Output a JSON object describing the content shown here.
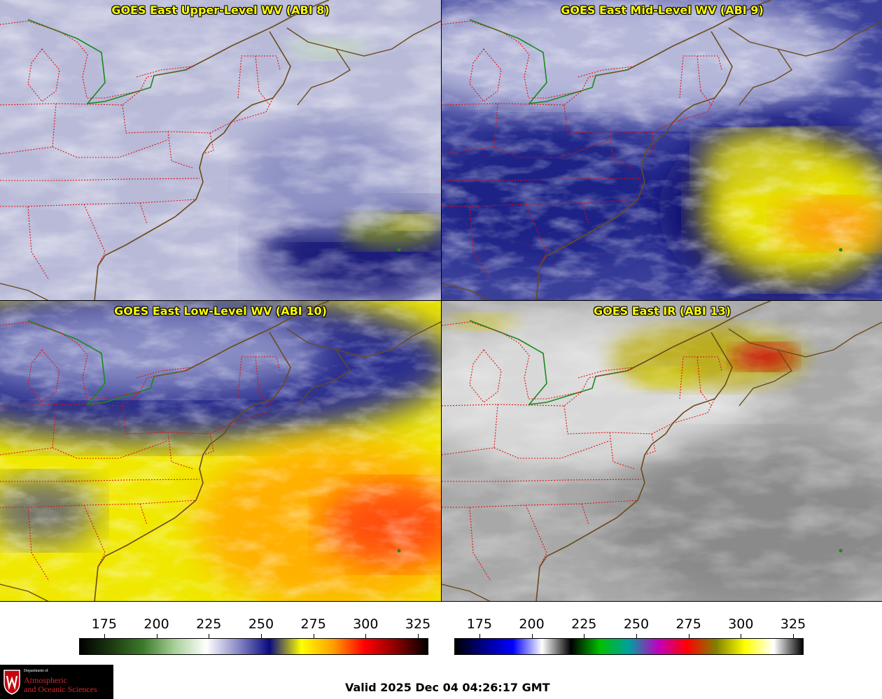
{
  "panels": [
    {
      "id": "upper",
      "title": "GOES East Upper-Level WV (ABI 8)"
    },
    {
      "id": "mid",
      "title": "GOES East Mid-Level WV (ABI 9)"
    },
    {
      "id": "low",
      "title": "GOES East Low-Level WV (ABI 10)"
    },
    {
      "id": "ir",
      "title": "GOES East IR (ABI 13)"
    }
  ],
  "colorbars": {
    "wv": {
      "ticks": [
        "175",
        "200",
        "225",
        "250",
        "275",
        "300",
        "325"
      ],
      "colors": [
        "#000000",
        "#1b3a10",
        "#3c7a2a",
        "#a8d098",
        "#ffffff",
        "#8a8ac8",
        "#0a0a80",
        "#ffff00",
        "#ffa000",
        "#ff0000",
        "#8a0000",
        "#000000"
      ]
    },
    "ir": {
      "ticks": [
        "175",
        "200",
        "225",
        "250",
        "275",
        "300",
        "325"
      ],
      "colors": [
        "#000000",
        "#00008a",
        "#0000ff",
        "#ffffff",
        "#000000",
        "#00c000",
        "#00a0a0",
        "#c000c0",
        "#ff0000",
        "#808000",
        "#ffff00",
        "#ffffff",
        "#000000"
      ]
    }
  },
  "logo": {
    "line1": "Department of",
    "line2": "Atmospheric",
    "line3": "and Oceanic Sciences"
  },
  "valid_time": "Valid 2025 Dec 04 04:26:17 GMT",
  "colors": {
    "title": "#ffff00",
    "state_borders": "#e01010",
    "coast": "#6b4a1a",
    "canada_us": "#1a8a1a"
  }
}
